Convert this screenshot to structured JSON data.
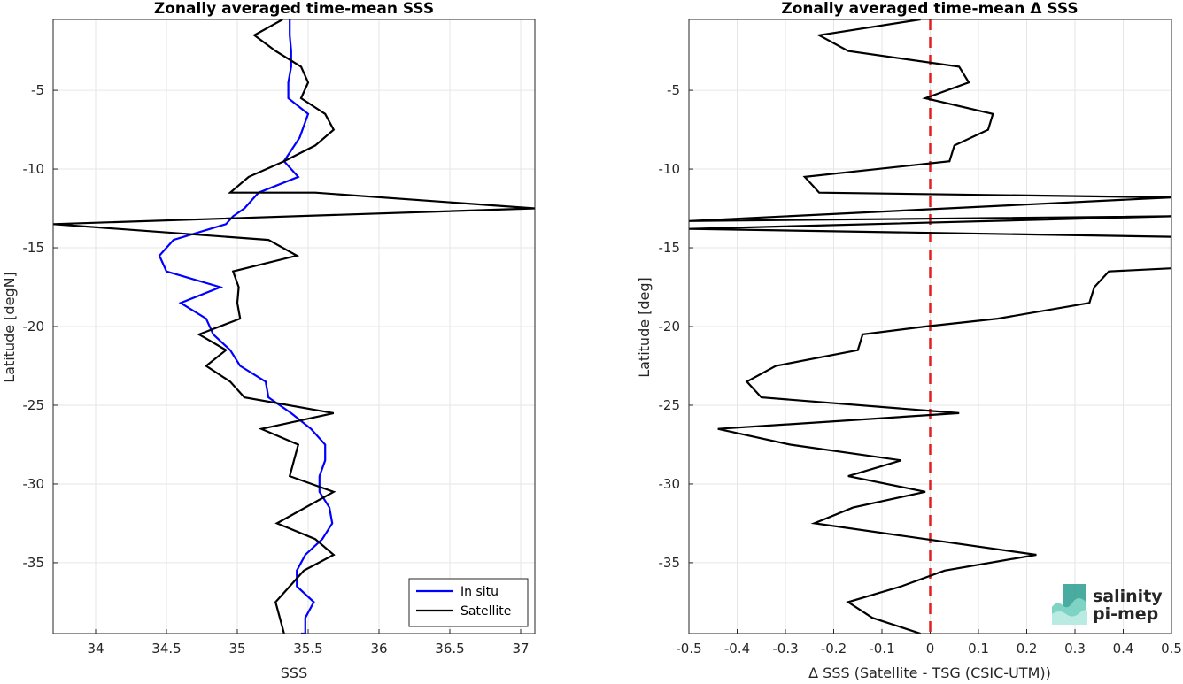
{
  "chart_data": [
    {
      "type": "line",
      "title": "Zonally averaged time-mean SSS",
      "xlabel": "SSS",
      "ylabel": "Latitude [degN]",
      "xlim": [
        33.7,
        37.1
      ],
      "ylim": [
        -39.5,
        -0.5
      ],
      "xticks": [
        "34",
        "34.5",
        "35",
        "35.5",
        "36",
        "36.5",
        "37"
      ],
      "yticks": [
        "-5",
        "-10",
        "-15",
        "-20",
        "-25",
        "-30",
        "-35"
      ],
      "grid": true,
      "legend": "bottom-right",
      "series": [
        {
          "name": "In situ",
          "color": "#0000ff",
          "x": [
            35.37,
            35.37,
            35.38,
            35.38,
            35.36,
            35.36,
            35.5,
            35.44,
            35.33,
            35.43,
            35.15,
            35.05,
            34.97,
            34.92,
            34.55,
            34.45,
            34.5,
            34.88,
            34.6,
            34.78,
            34.83,
            34.95,
            35.02,
            35.2,
            35.22,
            35.38,
            35.52,
            35.62,
            35.62,
            35.58,
            35.58,
            35.65,
            35.67,
            35.6,
            35.48,
            35.42,
            35.42,
            35.54,
            35.48,
            35.48,
            35.45,
            35.45
          ],
          "y": [
            -0.5,
            -1.5,
            -2.5,
            -3.5,
            -4.5,
            -5.5,
            -6.5,
            -8,
            -9.5,
            -10.5,
            -11.5,
            -12.5,
            -13,
            -13.5,
            -14.5,
            -15.5,
            -16.5,
            -17.5,
            -18.5,
            -19.5,
            -20.5,
            -21.5,
            -22.5,
            -23.5,
            -24.5,
            -25.5,
            -26.5,
            -27.5,
            -28.5,
            -29.5,
            -30.5,
            -31.5,
            -32.5,
            -33.5,
            -34.5,
            -35.5,
            -36.5,
            -37.5,
            -38.5,
            -39.5,
            -39.5,
            -39.5
          ]
        },
        {
          "name": "Satellite",
          "color": "#000000",
          "x": [
            35.32,
            35.12,
            35.27,
            35.45,
            35.5,
            35.45,
            35.62,
            35.68,
            35.55,
            35.33,
            35.08,
            34.95,
            35.55,
            37.1,
            33.7,
            35.22,
            35.42,
            34.97,
            35.01,
            35.0,
            35.02,
            34.73,
            34.92,
            34.78,
            34.95,
            35.05,
            35.68,
            35.17,
            35.43,
            35.37,
            35.68,
            35.28,
            35.55,
            35.68,
            35.47,
            35.37,
            35.27,
            35.3,
            35.33
          ],
          "y": [
            -0.5,
            -1.5,
            -2.5,
            -3.5,
            -4.5,
            -5.5,
            -6.5,
            -7.5,
            -8.5,
            -9.5,
            -10.5,
            -11.5,
            -11.5,
            -12.5,
            -13.5,
            -14.5,
            -15.5,
            -16.5,
            -17.5,
            -18.5,
            -19.5,
            -20.5,
            -21.5,
            -22.5,
            -23.5,
            -24.5,
            -25.5,
            -26.5,
            -27.5,
            -29.5,
            -30.5,
            -32.5,
            -33.5,
            -34.5,
            -35.5,
            -36.5,
            -37.5,
            -38.5,
            -39.5
          ]
        }
      ]
    },
    {
      "type": "line",
      "title": "Zonally averaged time-mean Δ SSS",
      "xlabel": "Δ SSS (Satellite - TSG (CSIC-UTM))",
      "ylabel": "Latitude [deg]",
      "xlim": [
        -0.5,
        0.5
      ],
      "ylim": [
        -39.5,
        -0.5
      ],
      "xticks": [
        "-0.5",
        "-0.4",
        "-0.3",
        "-0.2",
        "-0.1",
        "0",
        "0.1",
        "0.2",
        "0.3",
        "0.4",
        "0.5"
      ],
      "yticks": [
        "-5",
        "-10",
        "-15",
        "-20",
        "-25",
        "-30",
        "-35"
      ],
      "grid": true,
      "reference_line": {
        "x": 0,
        "color": "#e02020",
        "style": "dashed"
      },
      "series": [
        {
          "color": "#000000",
          "x": [
            -0.02,
            -0.23,
            -0.17,
            0.06,
            0.08,
            -0.01,
            0.13,
            0.12,
            0.05,
            0.04,
            -0.26,
            -0.23,
            0.5,
            -0.5,
            0.5,
            -0.5,
            0.5,
            0.5,
            0.37,
            0.34,
            0.33,
            0.14,
            -0.01,
            -0.14,
            -0.15,
            -0.32,
            -0.38,
            -0.35,
            0.06,
            -0.44,
            -0.29,
            -0.06,
            -0.17,
            -0.01,
            -0.16,
            -0.24,
            0.22,
            0.03,
            -0.06,
            -0.17,
            -0.12,
            -0.02
          ],
          "y": [
            -0.5,
            -1.5,
            -2.5,
            -3.5,
            -4.5,
            -5.5,
            -6.5,
            -7.5,
            -8.5,
            -9.5,
            -10.5,
            -11.5,
            -11.8,
            -13.3,
            -13.0,
            -13.8,
            -14.3,
            -16.3,
            -16.5,
            -17.5,
            -18.5,
            -19.5,
            -20.0,
            -20.5,
            -21.5,
            -22.5,
            -23.5,
            -24.5,
            -25.5,
            -26.5,
            -27.5,
            -28.5,
            -29.5,
            -30.5,
            -31.5,
            -32.5,
            -34.5,
            -35.5,
            -36.5,
            -37.5,
            -38.5,
            -39.5
          ]
        }
      ]
    }
  ],
  "logo": {
    "line1": "salinity",
    "line2": "pi-mep",
    "text_color": "#2a9d8f"
  },
  "colors": {
    "grid": "#e6e6e6",
    "axis": "#262626",
    "in_situ": "#0000ff",
    "satellite": "#000000",
    "zero_line": "#e02020"
  }
}
